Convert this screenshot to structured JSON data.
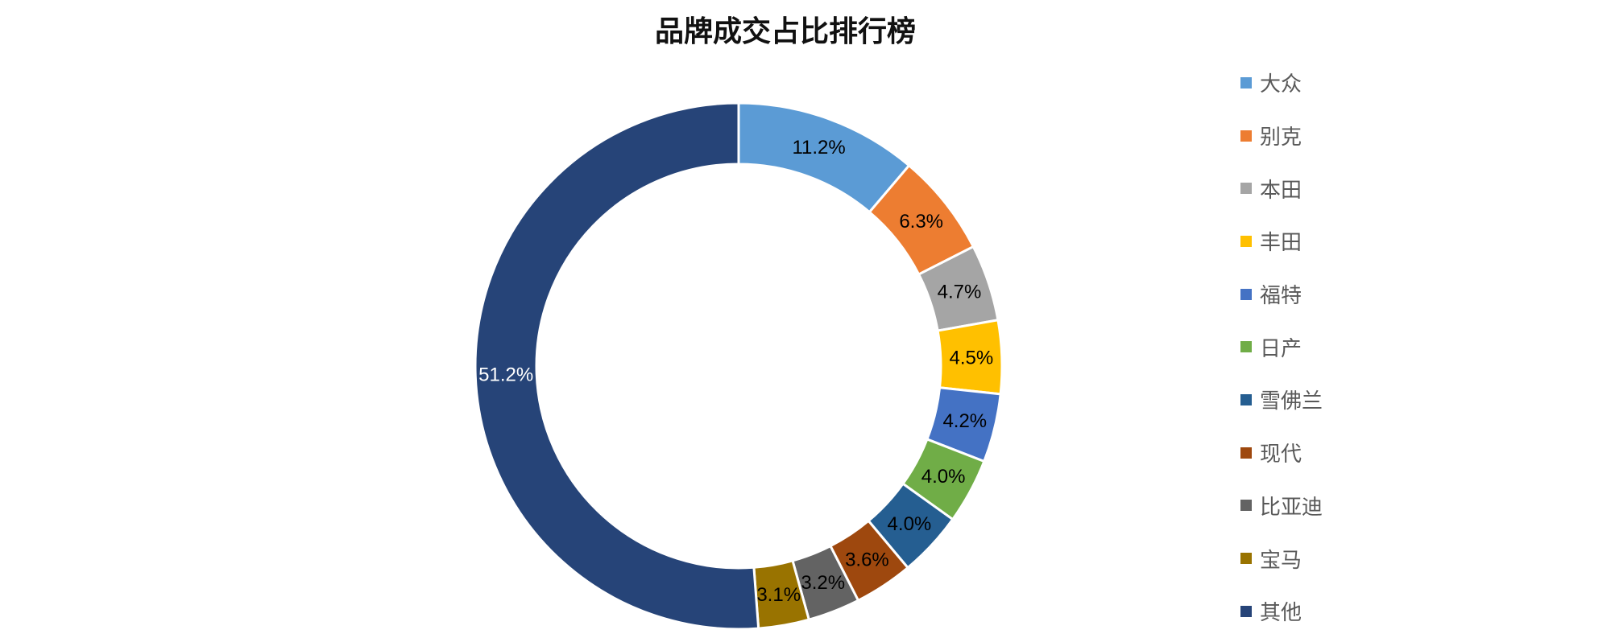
{
  "chart_data": {
    "type": "pie",
    "variant": "donut",
    "title": "品牌成交占比排行榜",
    "categories": [
      "大众",
      "别克",
      "本田",
      "丰田",
      "福特",
      "日产",
      "雪佛兰",
      "现代",
      "比亚迪",
      "宝马",
      "其他"
    ],
    "values": [
      11.2,
      6.3,
      4.7,
      4.5,
      4.2,
      4.0,
      4.0,
      3.6,
      3.2,
      3.1,
      51.2
    ],
    "labels": [
      "11.2%",
      "6.3%",
      "4.7%",
      "4.5%",
      "4.2%",
      "4.0%",
      "4.0%",
      "3.6%",
      "3.2%",
      "3.1%",
      "51.2%"
    ],
    "colors": [
      "#5B9BD5",
      "#ED7D31",
      "#A5A5A5",
      "#FFC000",
      "#4472C4",
      "#70AD47",
      "#255E91",
      "#9E480E",
      "#636363",
      "#997300",
      "#264478"
    ],
    "label_colors": [
      "#000000",
      "#000000",
      "#000000",
      "#000000",
      "#000000",
      "#000000",
      "#000000",
      "#000000",
      "#000000",
      "#000000",
      "#ffffff"
    ],
    "legend_position": "right"
  }
}
